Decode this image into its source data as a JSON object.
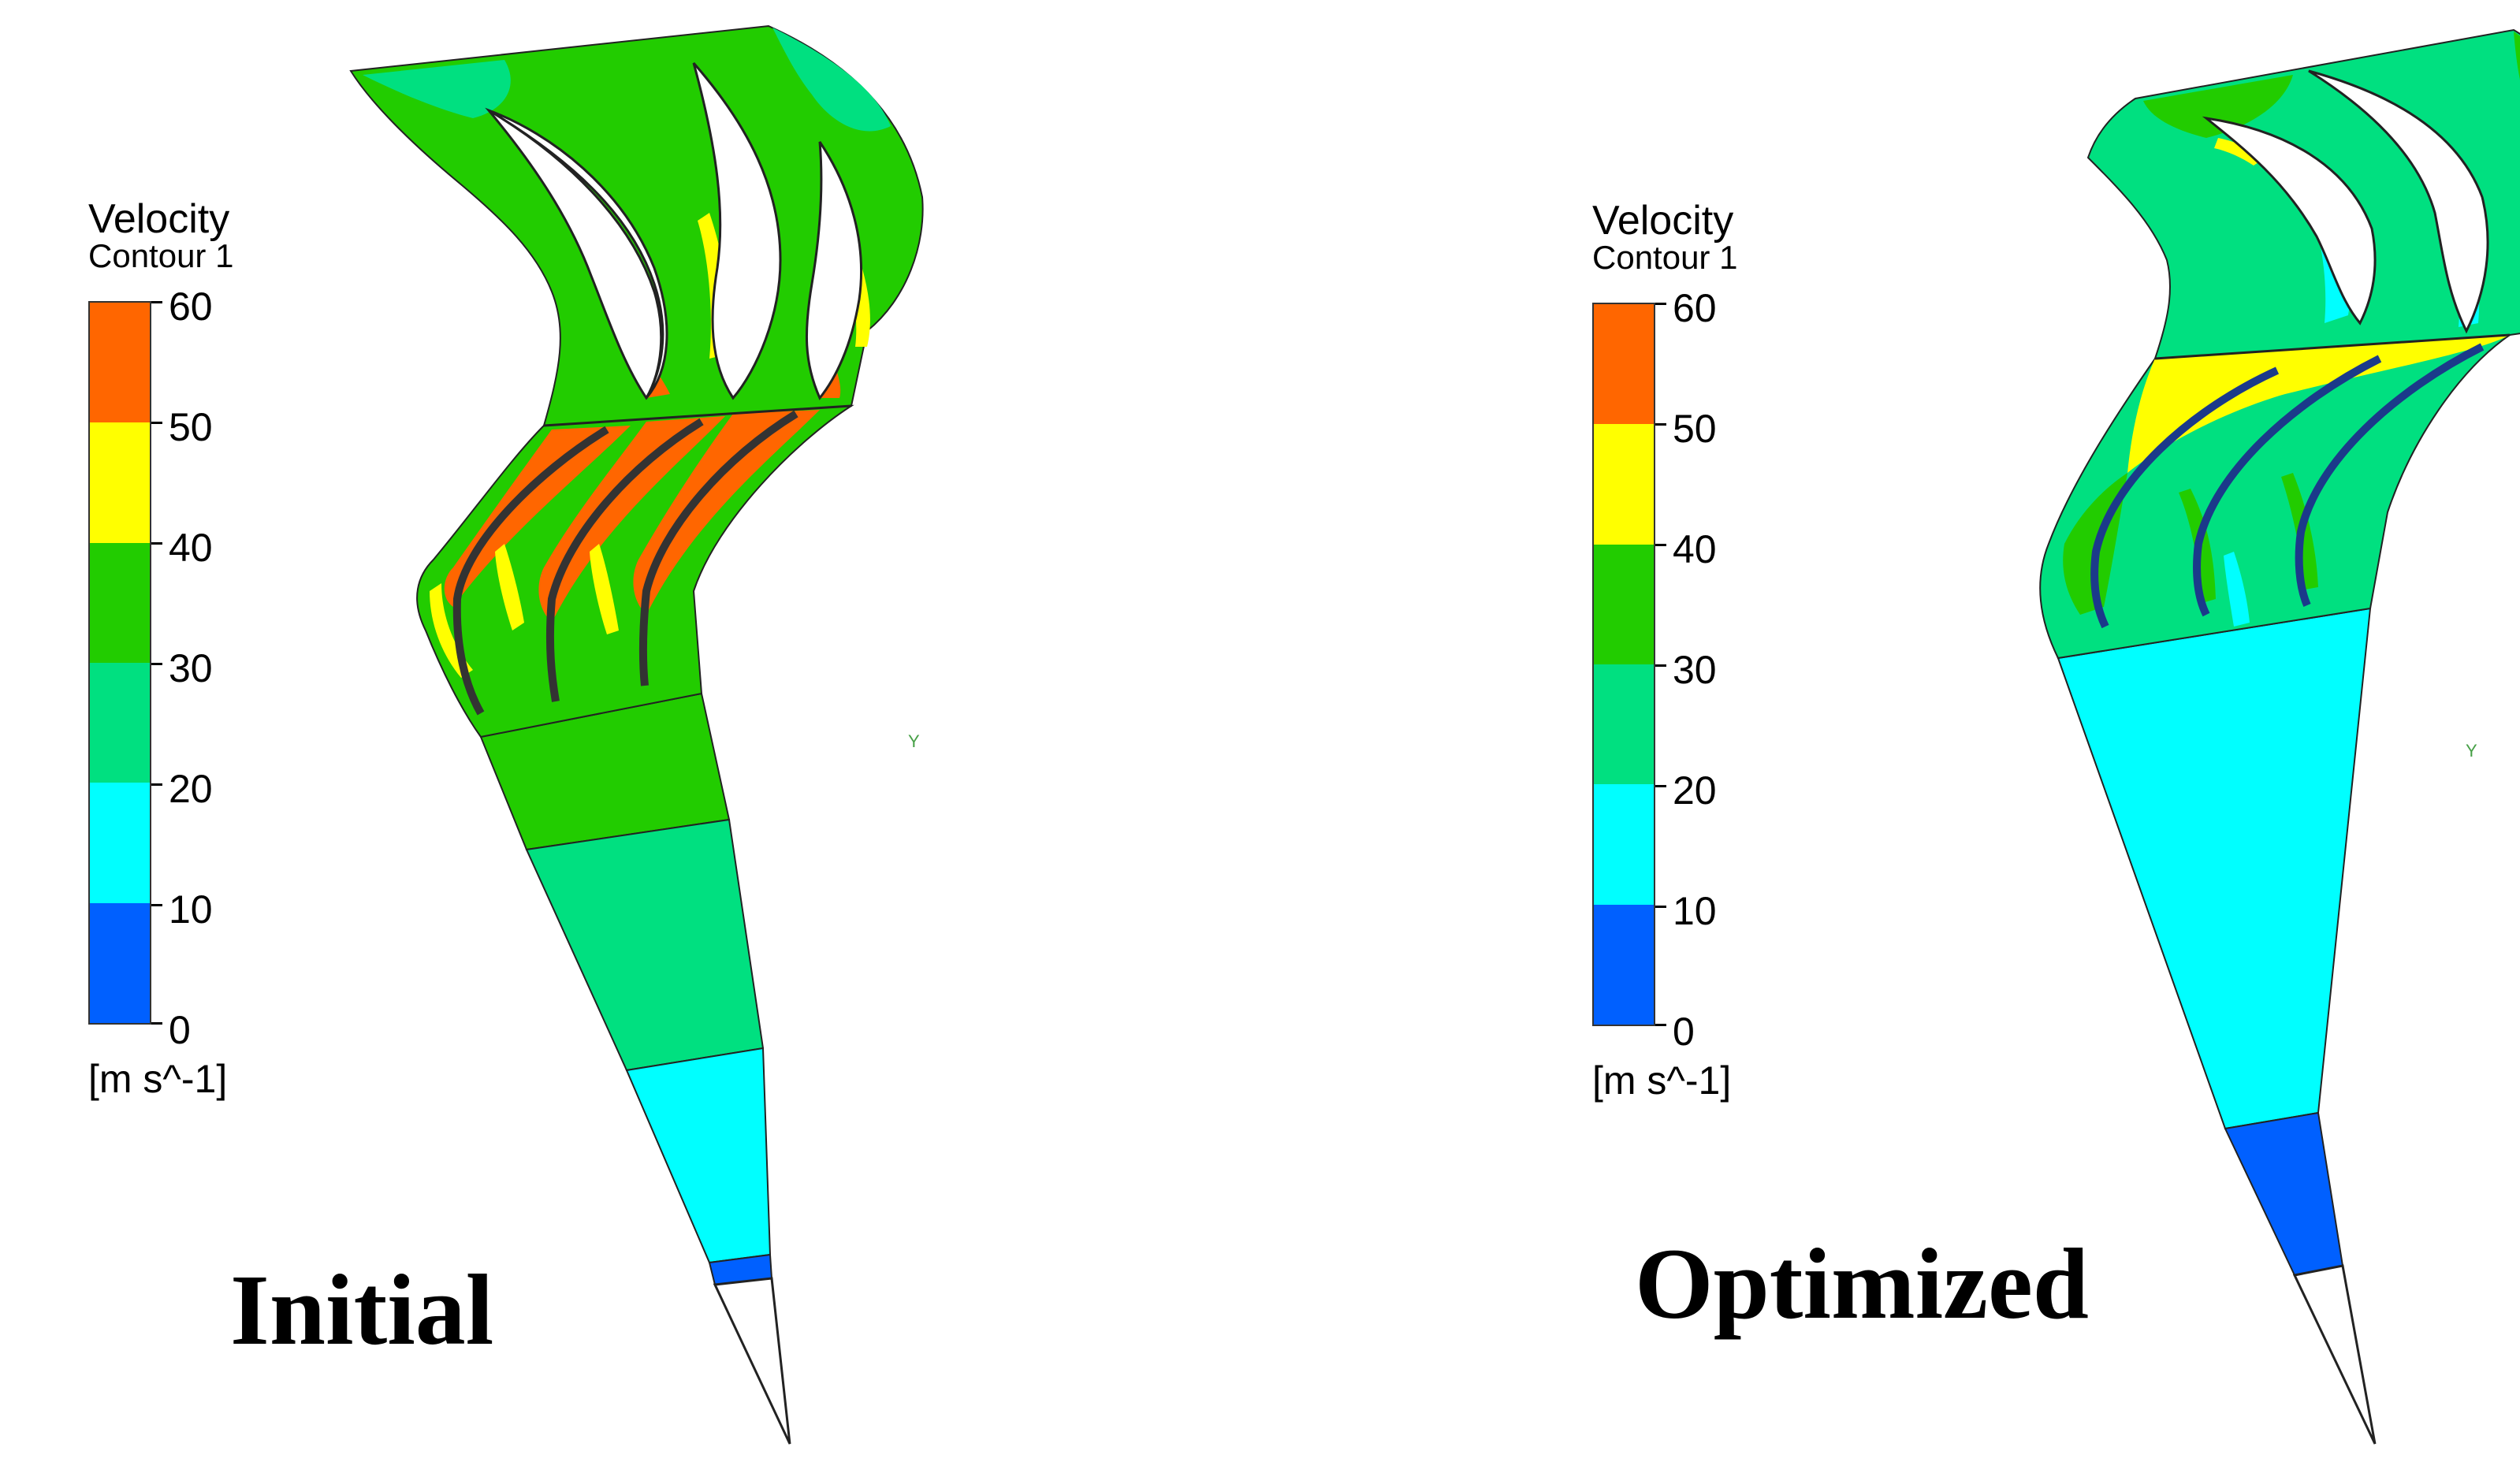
{
  "legend": {
    "title": "Velocity",
    "subtitle": "Contour 1",
    "unit": "[m s^-1]",
    "ticks": [
      "60",
      "50",
      "40",
      "30",
      "20",
      "10",
      "0"
    ],
    "colors": [
      "#ff6600",
      "#ffff00",
      "#22cc00",
      "#00e080",
      "#00ffff",
      "#0060ff"
    ]
  },
  "panels": [
    {
      "label": "Initial",
      "axis_marker": "Y"
    },
    {
      "label": "Optimized",
      "axis_marker": "Y"
    }
  ]
}
